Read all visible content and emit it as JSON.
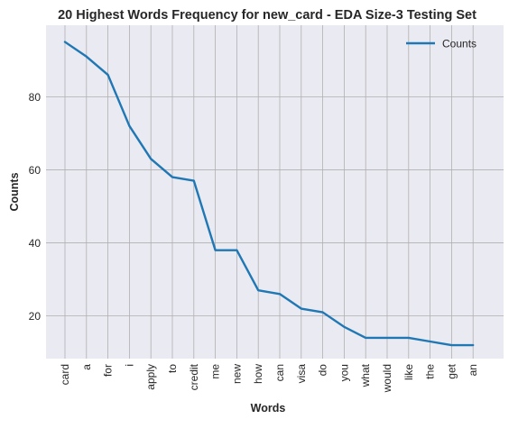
{
  "chart_data": {
    "type": "line",
    "title": "20 Highest Words Frequency for new_card - EDA Size-3 Testing Set",
    "xlabel": "Words",
    "ylabel": "Counts",
    "categories": [
      "card",
      "a",
      "for",
      "i",
      "apply",
      "to",
      "credit",
      "me",
      "new",
      "how",
      "can",
      "visa",
      "do",
      "you",
      "what",
      "would",
      "like",
      "the",
      "get",
      "an"
    ],
    "series": [
      {
        "name": "Counts",
        "values": [
          95,
          91,
          86,
          72,
          63,
          58,
          57,
          38,
          38,
          27,
          26,
          22,
          21,
          17,
          14,
          14,
          14,
          13,
          12,
          12
        ]
      }
    ],
    "ylim": [
      8,
      99
    ],
    "yticks": [
      20,
      40,
      60,
      80
    ],
    "grid": true,
    "legend_position": "top-right",
    "colors": {
      "line": "#1f77b4",
      "background": "#eaeaf2",
      "grid": "#b0b0b0"
    }
  }
}
